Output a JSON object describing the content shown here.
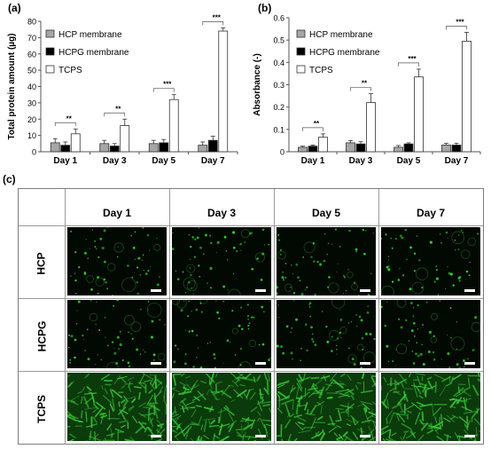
{
  "panels": {
    "a": "(a)",
    "b": "(b)",
    "c": "(c)"
  },
  "legend_labels": [
    "HCP membrane",
    "HCPG membrane",
    "TCPS"
  ],
  "colors": {
    "hcp": "#a6a6a6",
    "hcpg": "#000000",
    "tcps": "#ffffff",
    "cells_sparse": "#2fd02f",
    "cells_dense": "#38c738"
  },
  "chart_data": [
    {
      "type": "bar",
      "ylabel": "Total protein amount (µg)",
      "xlabel": "",
      "categories": [
        "Day 1",
        "Day 3",
        "Day 5",
        "Day 7"
      ],
      "ylim": [
        0,
        80
      ],
      "yticks": [
        0,
        10,
        20,
        30,
        40,
        50,
        60,
        70,
        80
      ],
      "legend_position": "top-left",
      "grid": false,
      "series": [
        {
          "name": "HCP membrane",
          "values": [
            5.5,
            5,
            5,
            4
          ],
          "errors": [
            2.5,
            2,
            2,
            2
          ]
        },
        {
          "name": "HCPG membrane",
          "values": [
            4,
            3.5,
            5.5,
            7
          ],
          "errors": [
            2,
            1.5,
            2,
            2.5
          ]
        },
        {
          "name": "TCPS",
          "values": [
            11,
            16,
            32,
            74
          ],
          "errors": [
            3,
            4,
            3,
            2
          ]
        }
      ],
      "significance": [
        {
          "category": "Day 1",
          "label": "**"
        },
        {
          "category": "Day 3",
          "label": "**"
        },
        {
          "category": "Day 5",
          "label": "***"
        },
        {
          "category": "Day 7",
          "label": "***"
        }
      ]
    },
    {
      "type": "bar",
      "ylabel": "Absorbance (-)",
      "xlabel": "",
      "categories": [
        "Day 1",
        "Day 3",
        "Day 5",
        "Day 7"
      ],
      "ylim": [
        0,
        0.6
      ],
      "yticks": [
        "0",
        "0.1",
        "0.2",
        "0.3",
        "0.4",
        "0.5",
        "0.6"
      ],
      "legend_position": "top-left",
      "grid": false,
      "series": [
        {
          "name": "HCP membrane",
          "values": [
            0.02,
            0.04,
            0.02,
            0.03
          ],
          "errors": [
            0.005,
            0.01,
            0.008,
            0.008
          ]
        },
        {
          "name": "HCPG membrane",
          "values": [
            0.025,
            0.035,
            0.035,
            0.03
          ],
          "errors": [
            0.005,
            0.01,
            0.005,
            0.008
          ]
        },
        {
          "name": "TCPS",
          "values": [
            0.065,
            0.22,
            0.335,
            0.495
          ],
          "errors": [
            0.015,
            0.04,
            0.035,
            0.04
          ]
        }
      ],
      "significance": [
        {
          "category": "Day 1",
          "label": "**"
        },
        {
          "category": "Day 3",
          "label": "**"
        },
        {
          "category": "Day 5",
          "label": "***"
        },
        {
          "category": "Day 7",
          "label": "***"
        }
      ]
    }
  ],
  "micrographs": {
    "columns": [
      "Day 1",
      "Day 3",
      "Day 5",
      "Day 7"
    ],
    "rows": [
      "HCP",
      "HCPG",
      "TCPS"
    ]
  }
}
